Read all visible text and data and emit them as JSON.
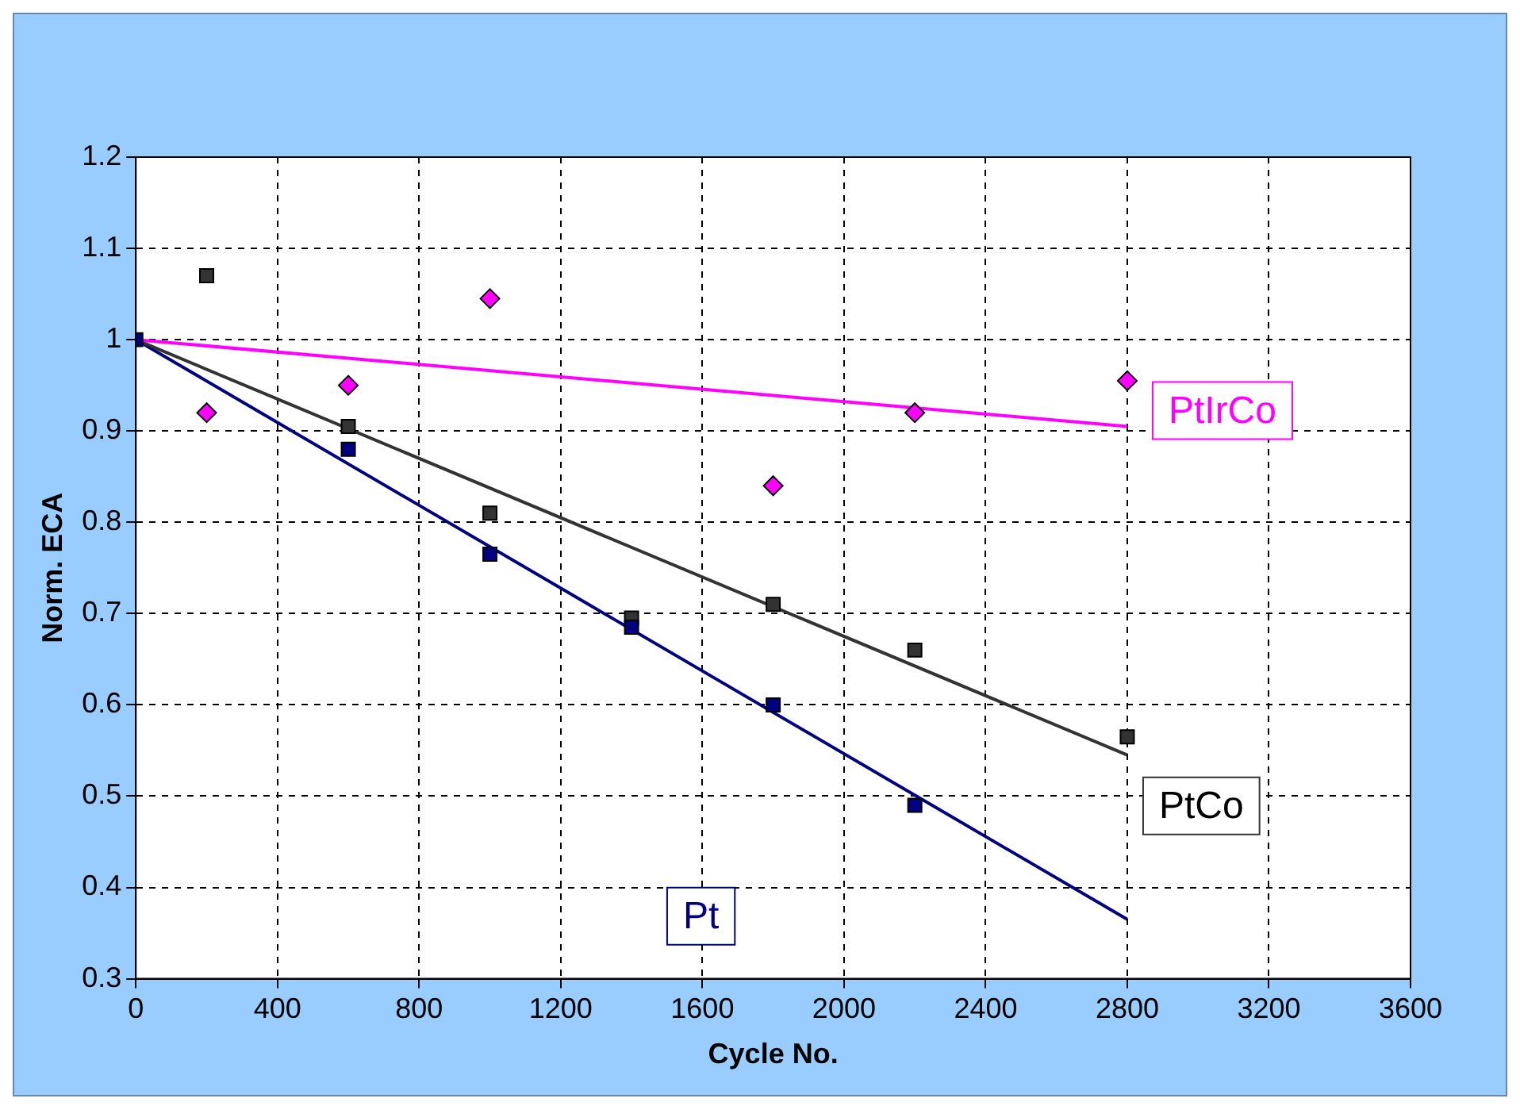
{
  "chart_data": {
    "type": "scatter",
    "xlabel": "Cycle No.",
    "ylabel": "Norm. ECA",
    "xlim": [
      0,
      3600
    ],
    "xticks": [
      0,
      400,
      800,
      1200,
      1600,
      2000,
      2400,
      2800,
      3200,
      3600
    ],
    "ylim": [
      0.3,
      1.2
    ],
    "yticks": [
      0.3,
      0.4,
      0.5,
      0.6,
      0.7,
      0.8,
      0.9,
      1,
      1.1,
      1.2
    ],
    "grid": true,
    "legend": false,
    "series": [
      {
        "marker": "diamond",
        "name": "PtIrCo",
        "color": "#ff00ff",
        "x": [
          200,
          600,
          1000,
          1800,
          2200,
          2800
        ],
        "values": [
          0.92,
          0.95,
          1.045,
          0.84,
          0.92,
          0.955
        ]
      },
      {
        "marker": "square",
        "name": "PtCo",
        "color": "#333333",
        "x": [
          200,
          600,
          1000,
          1400,
          1800,
          2200,
          2800
        ],
        "values": [
          1.07,
          0.905,
          0.81,
          0.695,
          0.71,
          0.66,
          0.565
        ]
      },
      {
        "marker": "square",
        "name": "Pt",
        "color": "#000080",
        "x": [
          0,
          600,
          1000,
          1400,
          1800,
          2200
        ],
        "values": [
          1.0,
          0.88,
          0.765,
          0.685,
          0.6,
          0.49
        ]
      },
      {
        "type": "line",
        "marker": "none",
        "color": "#ff00ff",
        "x": [
          0,
          2800
        ],
        "values": [
          1.0,
          0.905
        ]
      },
      {
        "type": "line",
        "marker": "none",
        "color": "#333333",
        "x": [
          0,
          2800
        ],
        "values": [
          1.0,
          0.545
        ]
      },
      {
        "type": "line",
        "marker": "none",
        "color": "#000080",
        "x": [
          0,
          2800
        ],
        "values": [
          1.0,
          0.365
        ]
      }
    ]
  }
}
